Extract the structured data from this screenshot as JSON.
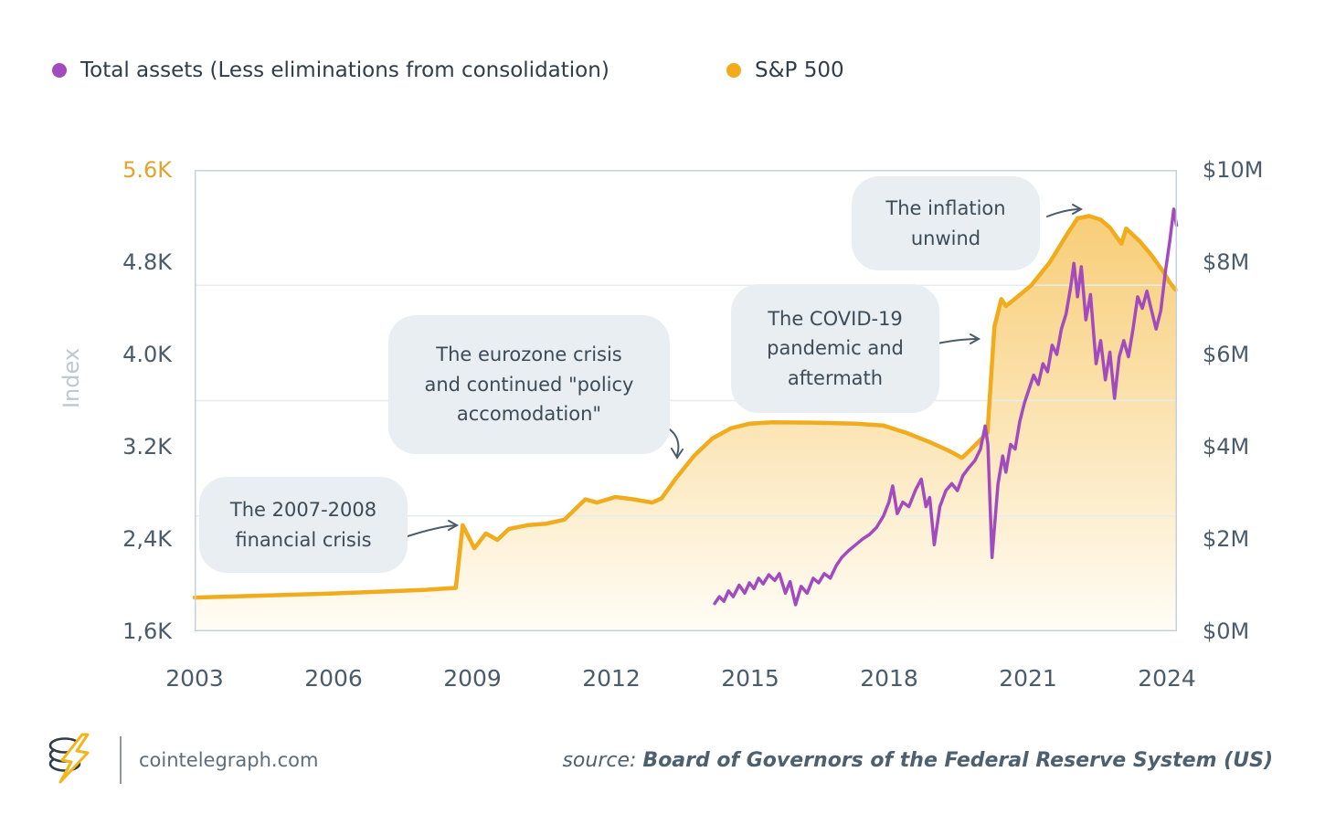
{
  "legend": {
    "items": [
      {
        "id": "total_assets",
        "label": "Total assets (Less eliminations from consolidation)",
        "color": "#A24BBE"
      },
      {
        "id": "sp500",
        "label": "S&P 500",
        "color": "#F0AC1C"
      }
    ]
  },
  "annotations": [
    {
      "id": "financial-crisis",
      "lines": [
        "The 2007-2008",
        "financial crisis"
      ]
    },
    {
      "id": "eurozone",
      "lines": [
        "The eurozone crisis",
        "and continued \"policy",
        "accomodation\""
      ]
    },
    {
      "id": "covid",
      "lines": [
        "The COVID-19",
        "pandemic and",
        "aftermath"
      ]
    },
    {
      "id": "inflation-unwind",
      "lines": [
        "The inflation",
        "unwind"
      ]
    }
  ],
  "footer": {
    "site": "cointelegraph.com",
    "source_label": "source: ",
    "source_text": "Board of Governors of the Federal Reserve System (US)"
  },
  "colors": {
    "amber": "#F0AC1C",
    "purple": "#A24BBE",
    "annotation_bg": "#E8EEF1",
    "text_dark": "#3C4B57",
    "axis_text": "#4A5C6B",
    "muted": "#BCC7CF",
    "grid": "#E7EBEE",
    "border": "#C5D2DA",
    "amber_tick": "#E2A42C",
    "area_top": "#F7C766",
    "area_bottom": "#FFFDF6",
    "arrow": "#4A5C6B",
    "footer_text": "#5D6D79",
    "source_text": "#4C6070",
    "logo_dark": "#2F3B46",
    "logo_bolt": "#F2B51D"
  },
  "chart_data": {
    "type": "line",
    "grid": "horizontal-only",
    "legend_position": "top-left",
    "x": {
      "min": 2003,
      "max": 2024.25,
      "ticks": [
        "2003",
        "2006",
        "2009",
        "2012",
        "2015",
        "2018",
        "2021",
        "2024"
      ]
    },
    "y_left": {
      "title": "Index",
      "min": 1.6,
      "max": 5.6,
      "ticks": [
        "5.6K",
        "4.8K",
        "4.0K",
        "3.2K",
        "2,4K",
        "1,6K"
      ],
      "top_tick_color": "#E2A42C"
    },
    "y_right": {
      "title": "",
      "min": 0,
      "max": 10,
      "ticks": [
        "$10M",
        "$8M",
        "$6M",
        "$4M",
        "$2M",
        "$0M"
      ]
    },
    "series": [
      {
        "id": "sp500",
        "name": "S&P 500",
        "color": "#F0AC1C",
        "axis": "right",
        "unit": "$M",
        "style": "line-with-area",
        "line_width": 4.5,
        "points": [
          [
            2003.0,
            0.73
          ],
          [
            2004.0,
            0.76
          ],
          [
            2005.0,
            0.79
          ],
          [
            2006.0,
            0.82
          ],
          [
            2007.0,
            0.86
          ],
          [
            2008.0,
            0.9
          ],
          [
            2008.65,
            0.94
          ],
          [
            2008.8,
            2.3
          ],
          [
            2009.05,
            1.8
          ],
          [
            2009.3,
            2.12
          ],
          [
            2009.55,
            1.98
          ],
          [
            2009.8,
            2.22
          ],
          [
            2010.2,
            2.3
          ],
          [
            2010.6,
            2.33
          ],
          [
            2011.0,
            2.42
          ],
          [
            2011.45,
            2.86
          ],
          [
            2011.7,
            2.79
          ],
          [
            2012.1,
            2.91
          ],
          [
            2012.5,
            2.86
          ],
          [
            2012.9,
            2.79
          ],
          [
            2013.1,
            2.88
          ],
          [
            2013.4,
            3.3
          ],
          [
            2013.8,
            3.8
          ],
          [
            2014.2,
            4.18
          ],
          [
            2014.6,
            4.4
          ],
          [
            2015.0,
            4.5
          ],
          [
            2015.5,
            4.53
          ],
          [
            2016.5,
            4.52
          ],
          [
            2017.3,
            4.5
          ],
          [
            2017.9,
            4.46
          ],
          [
            2018.4,
            4.3
          ],
          [
            2018.9,
            4.1
          ],
          [
            2019.3,
            3.92
          ],
          [
            2019.6,
            3.76
          ],
          [
            2019.8,
            3.95
          ],
          [
            2020.0,
            4.15
          ],
          [
            2020.15,
            4.3
          ],
          [
            2020.3,
            6.6
          ],
          [
            2020.45,
            7.2
          ],
          [
            2020.55,
            7.05
          ],
          [
            2020.8,
            7.25
          ],
          [
            2021.1,
            7.5
          ],
          [
            2021.5,
            8.0
          ],
          [
            2021.9,
            8.65
          ],
          [
            2022.1,
            8.95
          ],
          [
            2022.35,
            9.0
          ],
          [
            2022.6,
            8.92
          ],
          [
            2022.8,
            8.75
          ],
          [
            2023.05,
            8.4
          ],
          [
            2023.15,
            8.73
          ],
          [
            2023.45,
            8.45
          ],
          [
            2023.7,
            8.15
          ],
          [
            2023.95,
            7.8
          ],
          [
            2024.1,
            7.55
          ],
          [
            2024.22,
            7.4
          ]
        ]
      },
      {
        "id": "total_assets",
        "name": "Total assets (Less eliminations from consolidation)",
        "color": "#A24BBE",
        "axis": "left",
        "unit": "K (index points)",
        "style": "line",
        "line_width": 3.5,
        "points": [
          [
            2014.25,
            1.84
          ],
          [
            2014.35,
            1.9
          ],
          [
            2014.45,
            1.86
          ],
          [
            2014.55,
            1.95
          ],
          [
            2014.65,
            1.9
          ],
          [
            2014.78,
            2.0
          ],
          [
            2014.9,
            1.93
          ],
          [
            2015.0,
            2.02
          ],
          [
            2015.1,
            1.97
          ],
          [
            2015.2,
            2.06
          ],
          [
            2015.3,
            2.01
          ],
          [
            2015.42,
            2.09
          ],
          [
            2015.55,
            2.04
          ],
          [
            2015.65,
            2.1
          ],
          [
            2015.78,
            1.93
          ],
          [
            2015.88,
            2.03
          ],
          [
            2016.0,
            1.83
          ],
          [
            2016.12,
            1.99
          ],
          [
            2016.25,
            1.93
          ],
          [
            2016.38,
            2.06
          ],
          [
            2016.5,
            2.02
          ],
          [
            2016.62,
            2.1
          ],
          [
            2016.75,
            2.06
          ],
          [
            2016.88,
            2.17
          ],
          [
            2017.0,
            2.24
          ],
          [
            2017.15,
            2.3
          ],
          [
            2017.3,
            2.35
          ],
          [
            2017.45,
            2.4
          ],
          [
            2017.6,
            2.44
          ],
          [
            2017.75,
            2.5
          ],
          [
            2017.9,
            2.6
          ],
          [
            2018.02,
            2.72
          ],
          [
            2018.1,
            2.86
          ],
          [
            2018.2,
            2.62
          ],
          [
            2018.32,
            2.72
          ],
          [
            2018.45,
            2.68
          ],
          [
            2018.6,
            2.83
          ],
          [
            2018.72,
            2.92
          ],
          [
            2018.82,
            2.68
          ],
          [
            2018.9,
            2.76
          ],
          [
            2019.0,
            2.35
          ],
          [
            2019.12,
            2.68
          ],
          [
            2019.25,
            2.82
          ],
          [
            2019.38,
            2.88
          ],
          [
            2019.5,
            2.82
          ],
          [
            2019.62,
            2.95
          ],
          [
            2019.75,
            3.02
          ],
          [
            2019.88,
            3.08
          ],
          [
            2020.0,
            3.18
          ],
          [
            2020.1,
            3.38
          ],
          [
            2020.16,
            3.22
          ],
          [
            2020.25,
            2.24
          ],
          [
            2020.38,
            2.88
          ],
          [
            2020.48,
            3.12
          ],
          [
            2020.55,
            2.98
          ],
          [
            2020.65,
            3.22
          ],
          [
            2020.75,
            3.18
          ],
          [
            2020.85,
            3.42
          ],
          [
            2020.95,
            3.58
          ],
          [
            2021.05,
            3.7
          ],
          [
            2021.15,
            3.82
          ],
          [
            2021.25,
            3.74
          ],
          [
            2021.35,
            3.92
          ],
          [
            2021.45,
            3.85
          ],
          [
            2021.55,
            4.08
          ],
          [
            2021.65,
            4.0
          ],
          [
            2021.75,
            4.22
          ],
          [
            2021.85,
            4.35
          ],
          [
            2021.95,
            4.58
          ],
          [
            2022.02,
            4.79
          ],
          [
            2022.1,
            4.5
          ],
          [
            2022.18,
            4.76
          ],
          [
            2022.28,
            4.3
          ],
          [
            2022.38,
            4.52
          ],
          [
            2022.5,
            3.92
          ],
          [
            2022.6,
            4.12
          ],
          [
            2022.7,
            3.78
          ],
          [
            2022.8,
            4.02
          ],
          [
            2022.9,
            3.62
          ],
          [
            2023.0,
            3.98
          ],
          [
            2023.1,
            4.12
          ],
          [
            2023.2,
            3.98
          ],
          [
            2023.3,
            4.22
          ],
          [
            2023.4,
            4.5
          ],
          [
            2023.5,
            4.4
          ],
          [
            2023.6,
            4.55
          ],
          [
            2023.7,
            4.38
          ],
          [
            2023.8,
            4.22
          ],
          [
            2023.9,
            4.38
          ],
          [
            2024.0,
            4.72
          ],
          [
            2024.1,
            5.0
          ],
          [
            2024.18,
            5.26
          ],
          [
            2024.24,
            5.12
          ]
        ]
      }
    ]
  }
}
